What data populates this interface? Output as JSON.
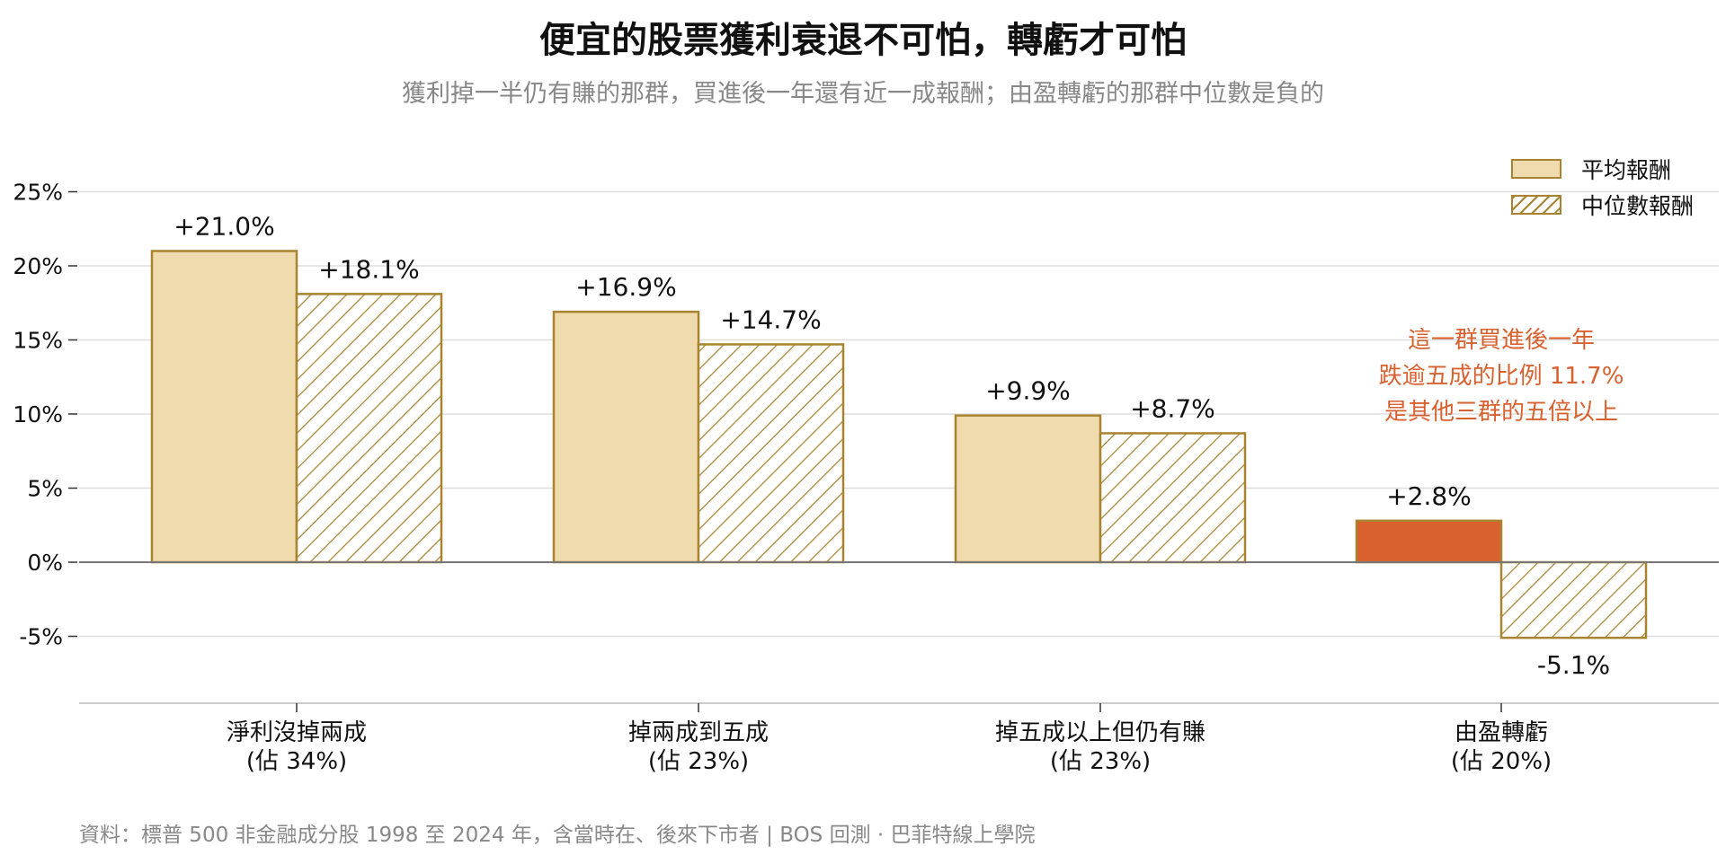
{
  "title": "便宜的股票獲利衰退不可怕，轉虧才可怕",
  "subtitle": "獲利掉一半仍有賺的那群，買進後一年還有近一成報酬；由盈轉虧的那群中位數是負的",
  "footer": "資料：標普 500 非金融成分股 1998 至 2024 年，含當時在、後來下市者 | BOS 回測 · 巴菲特線上學院",
  "colors": {
    "bar_fill": "#f0dbae",
    "bar_stroke": "#a88431",
    "highlight": "#d9612f",
    "annotation": "#d9612f",
    "grid": "#dddddd",
    "zero_line": "#777777"
  },
  "chart_data": {
    "type": "bar",
    "categories": [
      [
        "淨利沒掉兩成",
        "(佔 34%)"
      ],
      [
        "掉兩成到五成",
        "(佔 23%)"
      ],
      [
        "掉五成以上但仍有賺",
        "(佔 23%)"
      ],
      [
        "由盈轉虧",
        "(佔 20%)"
      ]
    ],
    "series": [
      {
        "name": "平均報酬",
        "pattern": "solid",
        "values": [
          21.0,
          16.9,
          9.9,
          2.8
        ],
        "labels": [
          "+21.0%",
          "+16.9%",
          "+9.9%",
          "+2.8%"
        ]
      },
      {
        "name": "中位數報酬",
        "pattern": "hatch",
        "values": [
          18.1,
          14.7,
          8.7,
          -5.1
        ],
        "labels": [
          "+18.1%",
          "+14.7%",
          "+8.7%",
          "-5.1%"
        ]
      }
    ],
    "highlight": {
      "series": 0,
      "category": 3
    },
    "ylim": [
      -9.5,
      27
    ],
    "yticks": [
      25,
      20,
      15,
      10,
      5,
      0,
      -5
    ],
    "ytick_labels": [
      "25%",
      "20%",
      "15%",
      "10%",
      "5%",
      "0%",
      "-5%"
    ],
    "grid": true,
    "legend_position": "top-right",
    "annotation": {
      "category": 3,
      "lines": [
        "這一群買進後一年",
        "跌逾五成的比例 11.7%",
        "是其他三群的五倍以上"
      ]
    }
  }
}
